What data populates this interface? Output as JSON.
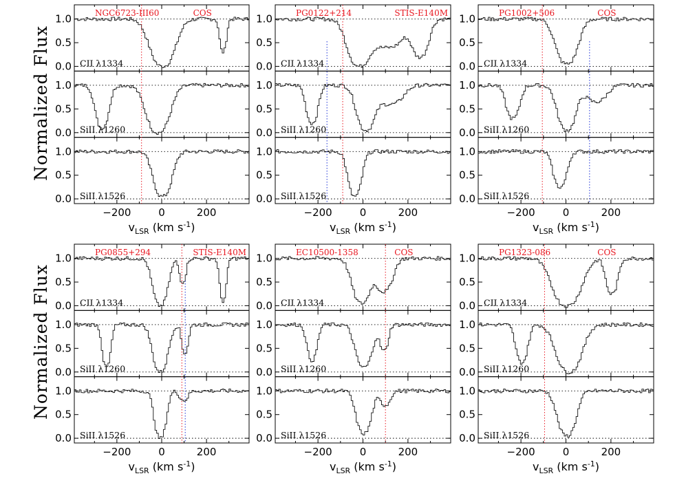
{
  "figure": {
    "y_axis_title": "Normalized Flux",
    "x_axis_title": "v",
    "x_axis_subscript": "LSR",
    "x_axis_units": " (km s",
    "x_axis_units_exp": "-1",
    "x_axis_units_close": ")"
  },
  "chart_data": [
    {
      "type": "line",
      "sightline": "NGC6723-III60",
      "instrument": "COS",
      "xlim": [
        -390,
        390
      ],
      "xticks": [
        -200,
        0,
        200
      ],
      "yticks": [
        0.0,
        0.5,
        1.0
      ],
      "red_line_v": -90,
      "blue_line_v": null,
      "panels": [
        {
          "ion": "CII λ1334",
          "ylim": [
            -0.1,
            1.3
          ],
          "continuum": 1.0,
          "components": [
            {
              "v": 0,
              "depth": 1.0,
              "width": 75
            },
            {
              "v": 270,
              "depth": 0.7,
              "width": 20
            }
          ]
        },
        {
          "ion": "SiII λ1260",
          "ylim": [
            -0.1,
            1.3
          ],
          "continuum": 1.0,
          "components": [
            {
              "v": -270,
              "depth": 0.9,
              "width": 40
            },
            {
              "v": -20,
              "depth": 1.0,
              "width": 70
            }
          ]
        },
        {
          "ion": "SiII λ1526",
          "ylim": [
            -0.1,
            1.3
          ],
          "continuum": 1.0,
          "components": [
            {
              "v": 0,
              "depth": 0.95,
              "width": 55
            }
          ]
        }
      ]
    },
    {
      "type": "line",
      "sightline": "PG0122+214",
      "instrument": "STIS-E140M",
      "xlim": [
        -390,
        390
      ],
      "xticks": [
        -200,
        0,
        200
      ],
      "yticks": [
        0.0,
        0.5,
        1.0
      ],
      "red_line_v": -90,
      "blue_line_v": -160,
      "panels": [
        {
          "ion": "CII λ1334",
          "ylim": [
            -0.1,
            1.3
          ],
          "continuum": 1.0,
          "components": [
            {
              "v": -20,
              "depth": 1.0,
              "width": 70
            },
            {
              "v": 110,
              "depth": 0.6,
              "width": 90
            },
            {
              "v": 250,
              "depth": 0.8,
              "width": 50
            }
          ]
        },
        {
          "ion": "SiII λ1260",
          "ylim": [
            -0.1,
            1.3
          ],
          "continuum": 1.0,
          "components": [
            {
              "v": -230,
              "depth": 0.8,
              "width": 35
            },
            {
              "v": 10,
              "depth": 0.95,
              "width": 55
            },
            {
              "v": 120,
              "depth": 0.4,
              "width": 70
            }
          ]
        },
        {
          "ion": "SiII λ1526",
          "ylim": [
            -0.1,
            1.3
          ],
          "continuum": 1.0,
          "components": [
            {
              "v": -40,
              "depth": 0.95,
              "width": 40
            }
          ]
        }
      ]
    },
    {
      "type": "line",
      "sightline": "PG1002+506",
      "instrument": "COS",
      "xlim": [
        -390,
        390
      ],
      "xticks": [
        -200,
        0,
        200
      ],
      "yticks": [
        0.0,
        0.5,
        1.0
      ],
      "red_line_v": -105,
      "blue_line_v": 105,
      "panels": [
        {
          "ion": "CII λ1334",
          "ylim": [
            -0.1,
            1.3
          ],
          "continuum": 1.0,
          "components": [
            {
              "v": 0,
              "depth": 0.95,
              "width": 65
            }
          ]
        },
        {
          "ion": "SiII λ1260",
          "ylim": [
            -0.1,
            1.3
          ],
          "continuum": 1.0,
          "components": [
            {
              "v": -240,
              "depth": 0.7,
              "width": 40
            },
            {
              "v": 0,
              "depth": 0.95,
              "width": 55
            },
            {
              "v": 130,
              "depth": 0.35,
              "width": 60
            }
          ]
        },
        {
          "ion": "SiII λ1526",
          "ylim": [
            -0.1,
            1.3
          ],
          "continuum": 1.0,
          "components": [
            {
              "v": -30,
              "depth": 0.75,
              "width": 40
            }
          ]
        }
      ]
    },
    {
      "type": "line",
      "sightline": "PG0855+294",
      "instrument": "STIS-E140M",
      "xlim": [
        -390,
        390
      ],
      "xticks": [
        -200,
        0,
        200
      ],
      "yticks": [
        0.0,
        0.5,
        1.0
      ],
      "red_line_v": 90,
      "blue_line_v": 105,
      "panels": [
        {
          "ion": "CII λ1334",
          "ylim": [
            -0.1,
            1.3
          ],
          "continuum": 1.0,
          "components": [
            {
              "v": -10,
              "depth": 1.0,
              "width": 45
            },
            {
              "v": 90,
              "depth": 0.5,
              "width": 20
            },
            {
              "v": 270,
              "depth": 0.9,
              "width": 20
            }
          ]
        },
        {
          "ion": "SiII λ1260",
          "ylim": [
            -0.1,
            1.3
          ],
          "continuum": 1.0,
          "components": [
            {
              "v": -250,
              "depth": 0.9,
              "width": 25
            },
            {
              "v": -10,
              "depth": 1.0,
              "width": 45
            },
            {
              "v": 100,
              "depth": 0.6,
              "width": 20
            }
          ]
        },
        {
          "ion": "SiII λ1526",
          "ylim": [
            -0.1,
            1.3
          ],
          "continuum": 1.0,
          "components": [
            {
              "v": -10,
              "depth": 1.0,
              "width": 35
            },
            {
              "v": 95,
              "depth": 0.2,
              "width": 25
            }
          ]
        }
      ]
    },
    {
      "type": "line",
      "sightline": "EC10500-1358",
      "instrument": "COS",
      "xlim": [
        -390,
        390
      ],
      "xticks": [
        -200,
        0,
        200
      ],
      "yticks": [
        0.0,
        0.5,
        1.0
      ],
      "red_line_v": 100,
      "blue_line_v": null,
      "panels": [
        {
          "ion": "CII λ1334",
          "ylim": [
            -0.1,
            1.3
          ],
          "continuum": 1.0,
          "components": [
            {
              "v": -10,
              "depth": 0.95,
              "width": 55
            },
            {
              "v": 90,
              "depth": 0.7,
              "width": 50
            }
          ]
        },
        {
          "ion": "SiII λ1260",
          "ylim": [
            -0.1,
            1.3
          ],
          "continuum": 1.0,
          "components": [
            {
              "v": -230,
              "depth": 0.75,
              "width": 30
            },
            {
              "v": 0,
              "depth": 0.9,
              "width": 50
            },
            {
              "v": 90,
              "depth": 0.55,
              "width": 25
            }
          ]
        },
        {
          "ion": "SiII λ1526",
          "ylim": [
            -0.1,
            1.3
          ],
          "continuum": 1.0,
          "components": [
            {
              "v": 0,
              "depth": 0.9,
              "width": 45
            },
            {
              "v": 95,
              "depth": 0.3,
              "width": 30
            }
          ]
        }
      ]
    },
    {
      "type": "line",
      "sightline": "PG1323-086",
      "instrument": "COS",
      "xlim": [
        -390,
        390
      ],
      "xticks": [
        -200,
        0,
        200
      ],
      "yticks": [
        0.0,
        0.5,
        1.0
      ],
      "red_line_v": -95,
      "blue_line_v": null,
      "panels": [
        {
          "ion": "CII λ1334",
          "ylim": [
            -0.1,
            1.3
          ],
          "continuum": 1.0,
          "components": [
            {
              "v": 0,
              "depth": 1.0,
              "width": 85
            },
            {
              "v": 200,
              "depth": 0.75,
              "width": 35
            }
          ]
        },
        {
          "ion": "SiII λ1260",
          "ylim": [
            -0.1,
            1.3
          ],
          "continuum": 1.0,
          "components": [
            {
              "v": -200,
              "depth": 0.8,
              "width": 35
            },
            {
              "v": 10,
              "depth": 1.0,
              "width": 75
            }
          ]
        },
        {
          "ion": "SiII λ1526",
          "ylim": [
            -0.1,
            1.3
          ],
          "continuum": 1.0,
          "components": [
            {
              "v": 0,
              "depth": 0.95,
              "width": 55
            }
          ]
        }
      ]
    }
  ]
}
